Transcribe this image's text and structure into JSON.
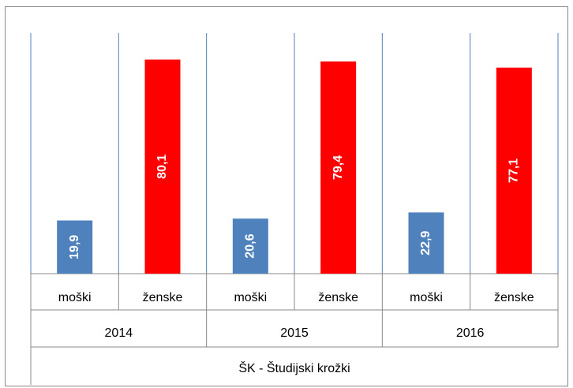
{
  "chart_data": {
    "type": "bar",
    "categories": [
      "moški",
      "ženske",
      "moški",
      "ženske",
      "moški",
      "ženske"
    ],
    "groups": [
      "2014",
      "2015",
      "2016"
    ],
    "supergroup": "ŠK - Študijski krožki",
    "values": [
      19.9,
      80.1,
      20.6,
      79.4,
      22.9,
      77.1
    ],
    "value_labels": [
      "19,9",
      "80,1",
      "20,6",
      "79,4",
      "22,9",
      "77,1"
    ],
    "colors": [
      "#4f81bd",
      "#ff0000",
      "#4f81bd",
      "#ff0000",
      "#4f81bd",
      "#ff0000"
    ],
    "ylim": [
      0,
      90
    ]
  }
}
